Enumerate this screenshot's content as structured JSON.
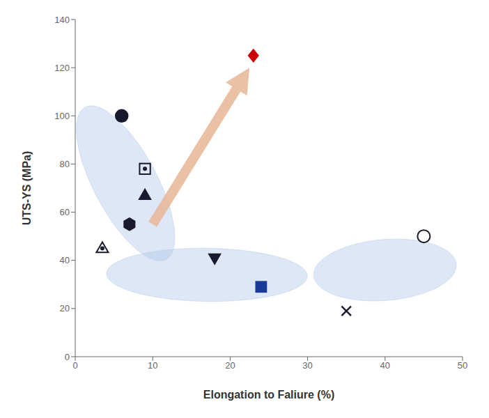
{
  "chart_data": {
    "type": "scatter",
    "title": "",
    "xlabel": "Elongation to Faliure (%)",
    "ylabel": "UTS-YS (MPa)",
    "xlim": [
      0,
      50
    ],
    "ylim": [
      0,
      140
    ],
    "xticks": [
      0,
      10,
      20,
      30,
      40,
      50
    ],
    "yticks": [
      0,
      20,
      40,
      60,
      80,
      100,
      120,
      140
    ],
    "grid": false,
    "points": [
      {
        "x": 6.0,
        "y": 100,
        "marker": "circle",
        "color": "#1a1a2e"
      },
      {
        "x": 9.0,
        "y": 78,
        "marker": "square-open-dot",
        "color": "#1a1a2e"
      },
      {
        "x": 9.0,
        "y": 67,
        "marker": "triangle-up",
        "color": "#1a1a2e"
      },
      {
        "x": 7.0,
        "y": 55,
        "marker": "hexagon",
        "color": "#1a1a2e"
      },
      {
        "x": 3.5,
        "y": 45,
        "marker": "triangle-up-open-dot",
        "color": "#1a1a2e"
      },
      {
        "x": 18.0,
        "y": 41,
        "marker": "triangle-down",
        "color": "#1a1a2e"
      },
      {
        "x": 24.0,
        "y": 29,
        "marker": "square",
        "color": "#1a3a9a"
      },
      {
        "x": 35.0,
        "y": 19,
        "marker": "x",
        "color": "#1a1a2e"
      },
      {
        "x": 45.0,
        "y": 50,
        "marker": "circle-open",
        "color": "#1a1a2e"
      },
      {
        "x": 23.0,
        "y": 125,
        "marker": "diamond",
        "color": "#cc0000"
      }
    ],
    "ellipses": [
      {
        "cx": 6.5,
        "cy": 72,
        "width": 9,
        "height": 65,
        "angle": 8,
        "color": "#aec6e8"
      },
      {
        "cx": 17.0,
        "cy": 34,
        "width": 26,
        "height": 22,
        "angle": -8,
        "color": "#aec6e8"
      },
      {
        "cx": 40.0,
        "cy": 36,
        "width": 18,
        "height": 26,
        "angle": -12,
        "color": "#aec6e8"
      }
    ],
    "arrow": {
      "x_start": 10.0,
      "y_start": 55,
      "x_end": 22.5,
      "y_end": 120,
      "color": "#e8b89a"
    }
  }
}
